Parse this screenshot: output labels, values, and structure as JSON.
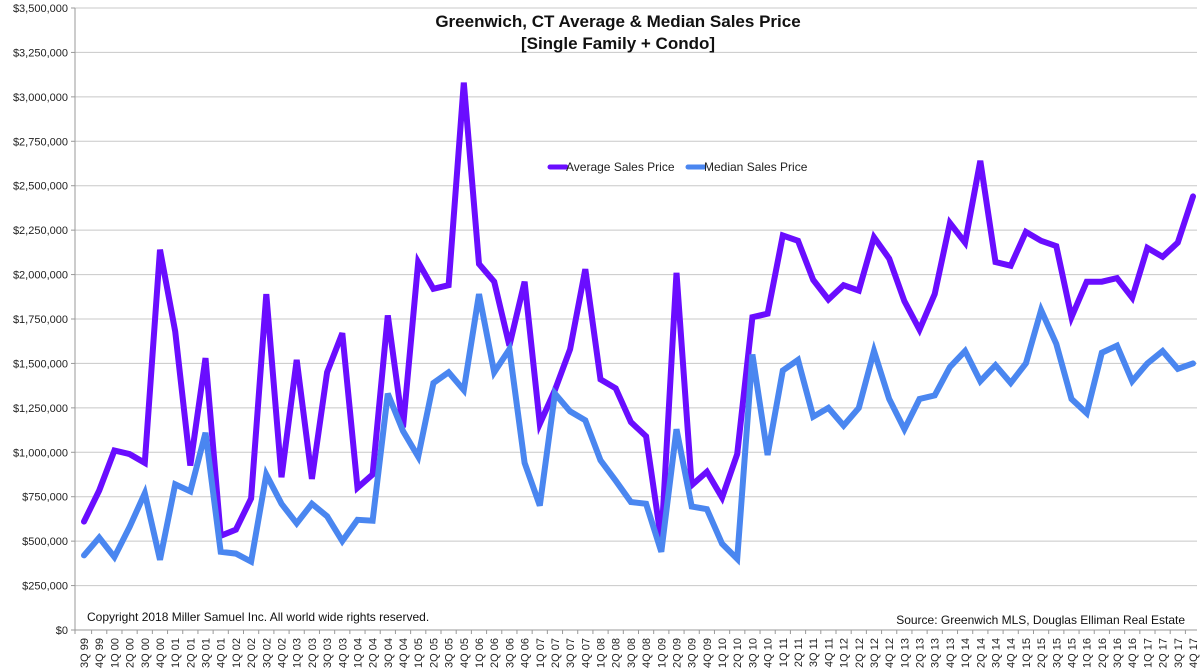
{
  "chart_data": {
    "type": "line",
    "title": "Greenwich, CT Average & Median Sales Price",
    "subtitle": "[Single Family + Condo]",
    "xlabel": "",
    "ylabel": "",
    "ylim": [
      0,
      3500000
    ],
    "y_ticks": [
      0,
      250000,
      500000,
      750000,
      1000000,
      1250000,
      1500000,
      1750000,
      2000000,
      2250000,
      2500000,
      2750000,
      3000000,
      3250000,
      3500000
    ],
    "y_tick_labels": [
      "$0",
      "$250,000",
      "$500,000",
      "$750,000",
      "$1,000,000",
      "$1,250,000",
      "$1,500,000",
      "$1,750,000",
      "$2,000,000",
      "$2,250,000",
      "$2,500,000",
      "$2,750,000",
      "$3,000,000",
      "$3,250,000",
      "$3,500,000"
    ],
    "grid": true,
    "legend_position": "top-center",
    "categories": [
      "3Q 99",
      "4Q 99",
      "1Q 00",
      "2Q 00",
      "3Q 00",
      "4Q 00",
      "1Q 01",
      "2Q 01",
      "3Q 01",
      "4Q 01",
      "1Q 02",
      "2Q 02",
      "3Q 02",
      "4Q 02",
      "1Q 03",
      "2Q 03",
      "3Q 03",
      "4Q 03",
      "1Q 04",
      "2Q 04",
      "3Q 04",
      "4Q 04",
      "1Q 05",
      "2Q 05",
      "3Q 05",
      "4Q 05",
      "1Q 06",
      "2Q 06",
      "3Q 06",
      "4Q 06",
      "1Q 07",
      "2Q 07",
      "3Q 07",
      "4Q 07",
      "1Q 08",
      "2Q 08",
      "3Q 08",
      "4Q 08",
      "1Q 09",
      "2Q 09",
      "3Q 09",
      "4Q 09",
      "1Q 10",
      "2Q 10",
      "3Q 10",
      "4Q 10",
      "1Q 11",
      "2Q 11",
      "3Q 11",
      "4Q 11",
      "1Q 12",
      "2Q 12",
      "3Q 12",
      "4Q 12",
      "1Q 13",
      "2Q 13",
      "3Q 13",
      "4Q 13",
      "1Q 14",
      "2Q 14",
      "3Q 14",
      "4Q 14",
      "1Q 15",
      "2Q 15",
      "3Q 15",
      "4Q 15",
      "1Q 16",
      "2Q 16",
      "3Q 16",
      "4Q 16",
      "1Q 17",
      "2Q 17",
      "3Q 17",
      "4Q 17"
    ],
    "series": [
      {
        "name": "Average Sales Price",
        "color": "#6a0dff",
        "values": [
          610000,
          785000,
          1010000,
          990000,
          940000,
          2140000,
          1680000,
          925000,
          1530000,
          530000,
          565000,
          740000,
          1890000,
          860000,
          1520000,
          850000,
          1450000,
          1670000,
          800000,
          875000,
          1770000,
          1140000,
          2070000,
          1920000,
          1940000,
          3080000,
          2060000,
          1960000,
          1600000,
          1960000,
          1160000,
          1350000,
          1580000,
          2030000,
          1410000,
          1360000,
          1170000,
          1090000,
          500000,
          2010000,
          815000,
          890000,
          745000,
          990000,
          1760000,
          1780000,
          2220000,
          2190000,
          1970000,
          1860000,
          1940000,
          1910000,
          2210000,
          2090000,
          1850000,
          1690000,
          1890000,
          2290000,
          2180000,
          2640000,
          2070000,
          2050000,
          2240000,
          2190000,
          2160000,
          1760000,
          1960000,
          1960000,
          1980000,
          1870000,
          2150000,
          2100000,
          2180000,
          2440000
        ]
      },
      {
        "name": "Median Sales Price",
        "color": "#4a86f0",
        "values": [
          420000,
          520000,
          410000,
          580000,
          770000,
          395000,
          820000,
          780000,
          1110000,
          440000,
          430000,
          385000,
          875000,
          710000,
          600000,
          710000,
          640000,
          500000,
          620000,
          615000,
          1330000,
          1120000,
          975000,
          1390000,
          1450000,
          1350000,
          1890000,
          1450000,
          1580000,
          940000,
          700000,
          1330000,
          1230000,
          1180000,
          955000,
          840000,
          720000,
          710000,
          440000,
          1130000,
          695000,
          680000,
          485000,
          400000,
          1550000,
          985000,
          1460000,
          1520000,
          1200000,
          1250000,
          1150000,
          1250000,
          1570000,
          1300000,
          1130000,
          1300000,
          1320000,
          1480000,
          1570000,
          1400000,
          1490000,
          1390000,
          1500000,
          1800000,
          1610000,
          1300000,
          1220000,
          1560000,
          1600000,
          1400000,
          1500000,
          1570000,
          1470000,
          1500000
        ]
      }
    ],
    "annotations": {
      "copyright": "Copyright 2018 Miller Samuel Inc.  All world wide rights reserved.",
      "source": "Source:  Greenwich MLS, Douglas Elliman Real Estate"
    }
  }
}
